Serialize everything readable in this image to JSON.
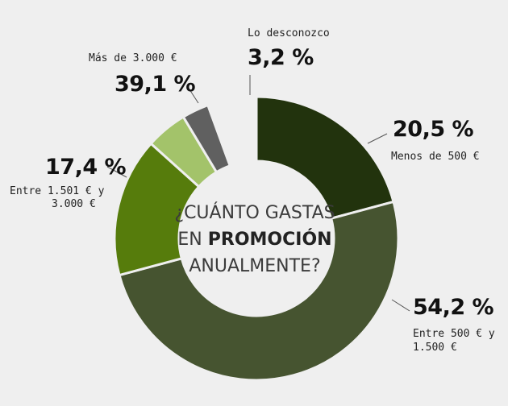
{
  "center_title": {
    "line1": "¿CUÁNTO GASTAS",
    "line2_prefix": "EN",
    "line2_strong": "PROMOCIÓN",
    "line3": "ANUALMENTE?"
  },
  "chart_data": {
    "type": "pie",
    "title": "¿CUÁNTO GASTAS EN PROMOCIÓN ANUALMENTE?",
    "slices": [
      {
        "label": "Menos de 500 €",
        "value": 20.5,
        "value_label": "20,5 %",
        "color": "#22330d"
      },
      {
        "label": "Entre 500 € y 1.500 €",
        "value": 54.2,
        "value_label": "54,2 %",
        "color": "#465430"
      },
      {
        "label": "Entre 1.501 € y 3.000 €",
        "value": 17.4,
        "value_label": "17,4 %",
        "color": "#567c0c"
      },
      {
        "label": "Más de 3.000 €",
        "value": 39.1,
        "value_label": "39,1 %",
        "color": "#a3c36a"
      },
      {
        "label": "Lo desconozco",
        "value": 3.2,
        "value_label": "3,2 %",
        "color": "#606060"
      }
    ]
  },
  "labels": {
    "menos500": {
      "pct": "20,5 %",
      "line1": "Menos de 500 €"
    },
    "entre500": {
      "pct": "54,2 %",
      "line1": "Entre 500 € y",
      "line2": "1.500 €"
    },
    "entre1501": {
      "pct": "17,4 %",
      "line1": "Entre 1.501 € y",
      "line2": "3.000 €"
    },
    "mas3000": {
      "pct": "39,1 %",
      "line1": "Más de 3.000 €"
    },
    "desconozco": {
      "pct": "3,2 %",
      "line1": "Lo desconozco"
    }
  }
}
